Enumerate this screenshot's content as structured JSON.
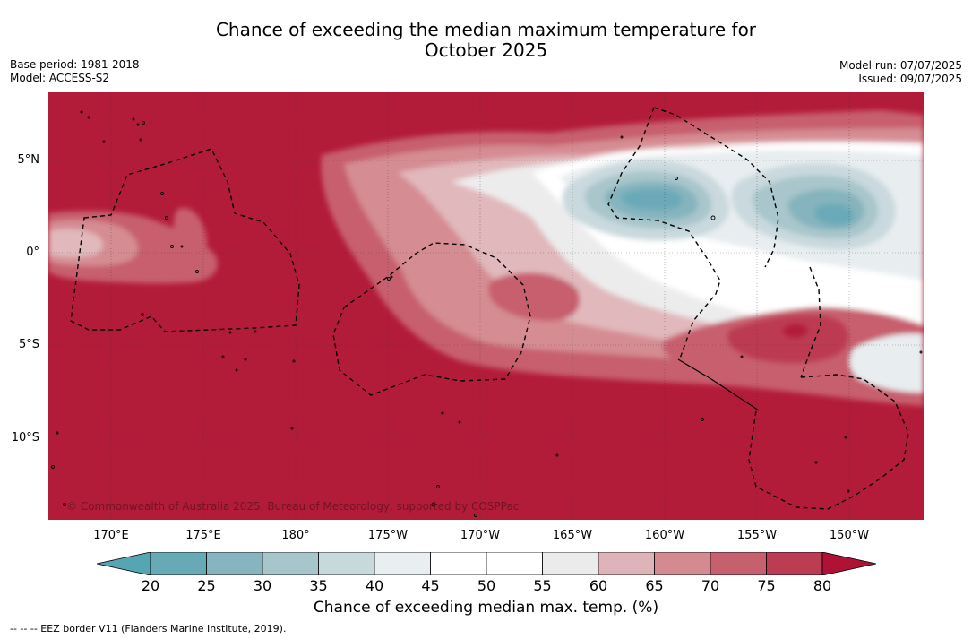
{
  "header": {
    "title_line1": "Chance of exceeding the median maximum temperature for",
    "title_line2": "October 2025",
    "base_period": "Base period: 1981-2018",
    "model": "Model: ACCESS-S2",
    "model_run": "Model run: 07/07/2025",
    "issued": "Issued: 09/07/2025"
  },
  "map": {
    "lat_labels": [
      "5°N",
      "0°",
      "5°S",
      "10°S"
    ],
    "lon_labels": [
      "170°E",
      "175°E",
      "180°",
      "175°W",
      "170°W",
      "165°W",
      "160°W",
      "155°W",
      "150°W"
    ],
    "copyright": "© Commonwealth of Australia 2025, Bureau of Meteorology, supported by COSPPac",
    "colors": {
      "background_high": "#b31c39",
      "c75_80": "#bc3b52",
      "c70_75": "#c75f6e",
      "c65_70": "#d58c93",
      "c60_65": "#e1b8bc",
      "c55_60": "#ececed",
      "c45_55": "#ffffff",
      "c40_45": "#e8edf0",
      "c35_40": "#c9d9de",
      "c30_35": "#a8c6cb",
      "c25_30": "#86b4be",
      "c20_25": "#6aaab8"
    }
  },
  "colorbar": {
    "ticks": [
      "20",
      "25",
      "30",
      "35",
      "40",
      "45",
      "50",
      "55",
      "60",
      "65",
      "70",
      "75",
      "80"
    ],
    "colors": [
      "#68a9b6",
      "#86b5bf",
      "#a6c6cb",
      "#c8d9dd",
      "#e9eef1",
      "#ffffff",
      "#ffffff",
      "#ebebec",
      "#deb4b9",
      "#d38a91",
      "#c6606f",
      "#bc3d53"
    ],
    "low_color": "#55a5b3",
    "high_color": "#b01236",
    "label": "Chance of exceeding median max. temp. (%)"
  },
  "footnote": "--  --  -- EEZ border V11 (Flanders Marine Institute, 2019)."
}
